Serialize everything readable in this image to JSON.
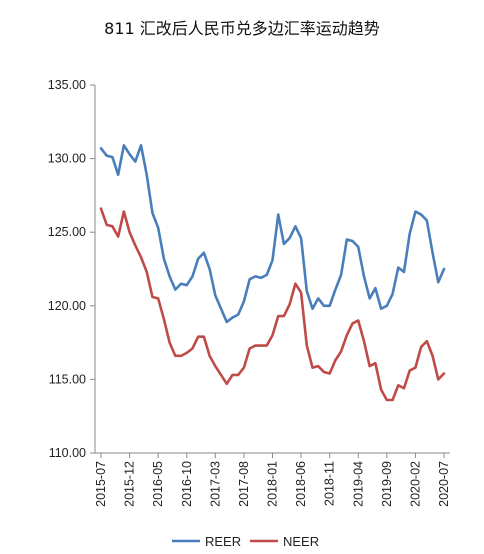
{
  "chart_data": {
    "type": "line",
    "title": "811 汇改后人民币兑多边汇率运动趋势",
    "xlabel": "",
    "ylabel": "",
    "ylim": [
      110,
      135
    ],
    "yticks": [
      "110.00",
      "115.00",
      "120.00",
      "125.00",
      "130.00",
      "135.00"
    ],
    "xticks": [
      "2015-07",
      "2015-12",
      "2016-05",
      "2016-10",
      "2017-03",
      "2017-08",
      "2018-01",
      "2018-06",
      "2018-11",
      "2019-04",
      "2019-09",
      "2020-02",
      "2020-07"
    ],
    "grid": false,
    "legend_position": "bottom",
    "x": [
      "2015-07",
      "2015-08",
      "2015-09",
      "2015-10",
      "2015-11",
      "2015-12",
      "2016-01",
      "2016-02",
      "2016-03",
      "2016-04",
      "2016-05",
      "2016-06",
      "2016-07",
      "2016-08",
      "2016-09",
      "2016-10",
      "2016-11",
      "2016-12",
      "2017-01",
      "2017-02",
      "2017-03",
      "2017-04",
      "2017-05",
      "2017-06",
      "2017-07",
      "2017-08",
      "2017-09",
      "2017-10",
      "2017-11",
      "2017-12",
      "2018-01",
      "2018-02",
      "2018-03",
      "2018-04",
      "2018-05",
      "2018-06",
      "2018-07",
      "2018-08",
      "2018-09",
      "2018-10",
      "2018-11",
      "2018-12",
      "2019-01",
      "2019-02",
      "2019-03",
      "2019-04",
      "2019-05",
      "2019-06",
      "2019-07",
      "2019-08",
      "2019-09",
      "2019-10",
      "2019-11",
      "2019-12",
      "2020-01",
      "2020-02",
      "2020-03",
      "2020-04",
      "2020-05",
      "2020-06",
      "2020-07"
    ],
    "series": [
      {
        "name": "REER",
        "color": "#4a7ebb",
        "values": [
          130.7,
          130.2,
          130.1,
          128.9,
          130.9,
          130.3,
          129.8,
          130.9,
          128.9,
          126.3,
          125.3,
          123.2,
          122.0,
          121.1,
          121.5,
          121.4,
          122.0,
          123.2,
          123.6,
          122.5,
          120.7,
          119.8,
          118.9,
          119.2,
          119.4,
          120.3,
          121.8,
          122.0,
          121.9,
          122.1,
          123.1,
          126.2,
          124.2,
          124.6,
          125.4,
          124.6,
          121.0,
          119.8,
          120.5,
          120.0,
          120.0,
          121.1,
          122.1,
          124.5,
          124.4,
          124.0,
          122.0,
          120.5,
          121.2,
          119.8,
          120.0,
          120.8,
          122.6,
          122.3,
          124.9,
          126.4,
          126.2,
          125.8,
          123.6,
          121.6,
          122.5
        ]
      },
      {
        "name": "NEER",
        "color": "#be4b48",
        "values": [
          126.6,
          125.5,
          125.4,
          124.7,
          126.4,
          125.0,
          124.1,
          123.3,
          122.3,
          120.6,
          120.5,
          119.1,
          117.5,
          116.6,
          116.6,
          116.8,
          117.1,
          117.9,
          117.9,
          116.6,
          115.9,
          115.3,
          114.7,
          115.3,
          115.3,
          115.8,
          117.1,
          117.3,
          117.3,
          117.3,
          118.0,
          119.3,
          119.3,
          120.1,
          121.5,
          120.9,
          117.3,
          115.8,
          115.9,
          115.5,
          115.4,
          116.3,
          116.9,
          118.0,
          118.8,
          119.0,
          117.6,
          115.9,
          116.1,
          114.3,
          113.6,
          113.6,
          114.6,
          114.4,
          115.6,
          115.8,
          117.2,
          117.6,
          116.6,
          115.0,
          115.4
        ]
      }
    ]
  }
}
